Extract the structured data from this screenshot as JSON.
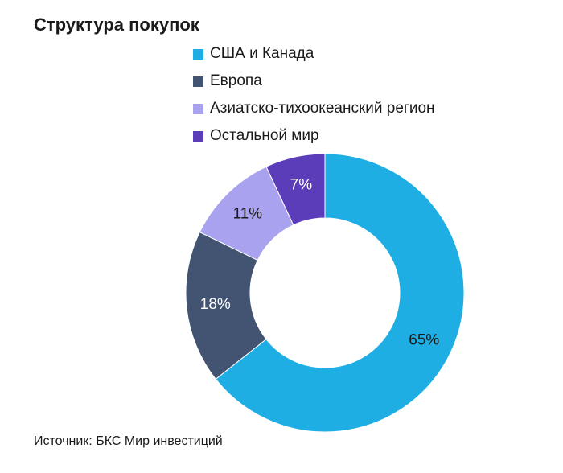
{
  "chart_data": {
    "type": "pie",
    "title": "Структура покупок",
    "categories": [
      "США и Канада",
      "Европа",
      "Азиатско-тихоокеанский регион",
      "Остальной мир"
    ],
    "values": [
      65,
      18,
      11,
      7
    ],
    "labels": [
      "65%",
      "18%",
      "11%",
      "7%"
    ],
    "colors": [
      "#1eaee3",
      "#435372",
      "#a9a2ee",
      "#5b3dba"
    ],
    "label_colors": [
      "#1a1a1a",
      "#ffffff",
      "#1a1a1a",
      "#ffffff"
    ],
    "legend_position": "top"
  },
  "source": "Источник: БКС Мир инвестиций"
}
